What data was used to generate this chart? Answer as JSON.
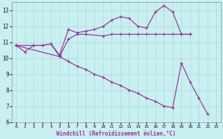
{
  "background_color": "#c8f0f0",
  "grid_color": "#b0dede",
  "line_color": "#993399",
  "marker": "+",
  "xlabel": "Windchill (Refroidissement éolien,°C)",
  "xlim": [
    -0.5,
    23.5
  ],
  "ylim": [
    6,
    13.5
  ],
  "yticks": [
    6,
    7,
    8,
    9,
    10,
    11,
    12,
    13
  ],
  "xticks": [
    0,
    1,
    2,
    3,
    4,
    5,
    6,
    7,
    8,
    9,
    10,
    11,
    12,
    13,
    14,
    15,
    16,
    17,
    18,
    19,
    20,
    21,
    22,
    23
  ],
  "xtick_labels": [
    "0",
    "1",
    "2",
    "3",
    "4",
    "5",
    "6",
    "7",
    "8",
    "9",
    "10",
    "11",
    "12",
    "13",
    "14",
    "15",
    "16",
    "17",
    "18",
    "19",
    "20",
    "21",
    "22",
    "23"
  ],
  "series": [
    {
      "x": [
        0,
        1,
        2,
        3,
        4,
        5,
        6,
        7,
        8,
        9,
        10,
        11,
        12,
        13,
        14,
        15,
        16,
        17,
        18,
        19,
        20
      ],
      "y": [
        10.8,
        10.4,
        10.8,
        10.8,
        10.9,
        10.2,
        11.8,
        11.6,
        11.7,
        11.8,
        12.0,
        12.4,
        12.6,
        12.5,
        12.0,
        11.9,
        12.9,
        13.3,
        12.9,
        11.5,
        11.5
      ]
    },
    {
      "x": [
        0,
        2,
        3,
        4,
        5,
        6,
        7,
        8,
        10,
        11,
        12,
        13,
        14,
        15,
        16,
        17,
        18,
        19,
        20
      ],
      "y": [
        10.8,
        10.8,
        10.8,
        10.9,
        10.1,
        11.2,
        11.5,
        11.5,
        11.4,
        11.5,
        11.5,
        11.5,
        11.5,
        11.5,
        11.5,
        11.5,
        11.5,
        11.5,
        11.5
      ]
    },
    {
      "x": [
        0,
        5,
        6,
        7,
        8,
        9,
        10,
        11,
        12,
        13,
        14,
        15,
        16,
        17,
        18,
        19,
        20,
        21,
        22
      ],
      "y": [
        10.8,
        10.1,
        9.8,
        9.5,
        9.3,
        9.0,
        8.8,
        8.5,
        8.3,
        8.0,
        7.8,
        7.5,
        7.3,
        7.0,
        6.9,
        9.7,
        8.5,
        7.5,
        6.5
      ]
    }
  ]
}
